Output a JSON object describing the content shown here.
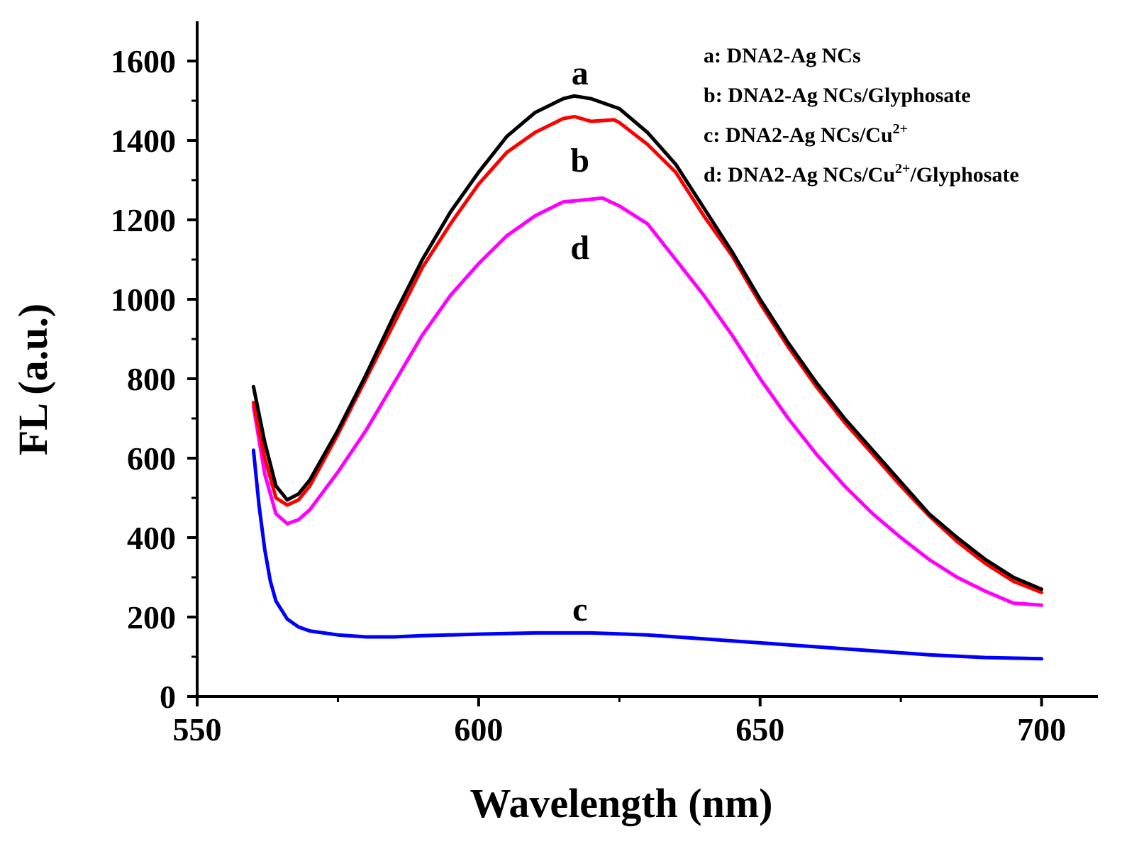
{
  "chart_data": {
    "type": "line",
    "title": "",
    "xlabel": "Wavelength (nm)",
    "ylabel": "FL (a.u.)",
    "xlim": [
      550,
      710
    ],
    "ylim": [
      0,
      1700
    ],
    "x_ticks": [
      550,
      600,
      650,
      700
    ],
    "y_ticks": [
      0,
      200,
      400,
      600,
      800,
      1000,
      1200,
      1400,
      1600
    ],
    "grid": false,
    "legend_position": "top-right",
    "legend": [
      {
        "letter": "a",
        "text": ": DNA2-Ag NCs",
        "sup": "",
        "after": ""
      },
      {
        "letter": "b",
        "text": ": DNA2-Ag NCs/Glyphosate",
        "sup": "",
        "after": ""
      },
      {
        "letter": "c",
        "text": ": DNA2-Ag NCs/Cu",
        "sup": "2+",
        "after": ""
      },
      {
        "letter": "d",
        "text": ": DNA2-Ag NCs/Cu",
        "sup": "2+",
        "after": "/Glyphosate"
      }
    ],
    "series": [
      {
        "label": "a",
        "color": "#000000",
        "label_at": [
          618,
          1570
        ],
        "x": [
          560,
          562,
          564,
          566,
          568,
          570,
          575,
          580,
          585,
          590,
          595,
          600,
          605,
          610,
          615,
          617,
          620,
          625,
          630,
          635,
          640,
          645,
          650,
          655,
          660,
          665,
          670,
          675,
          680,
          685,
          690,
          695,
          700
        ],
        "y": [
          780,
          640,
          530,
          495,
          510,
          545,
          670,
          810,
          960,
          1100,
          1220,
          1320,
          1410,
          1470,
          1505,
          1512,
          1505,
          1480,
          1420,
          1340,
          1230,
          1120,
          1000,
          890,
          790,
          700,
          620,
          540,
          460,
          400,
          345,
          300,
          270
        ]
      },
      {
        "label": "b",
        "color": "#ff0000",
        "label_at": [
          618,
          1350
        ],
        "x": [
          560,
          562,
          564,
          566,
          568,
          570,
          575,
          580,
          585,
          590,
          595,
          600,
          605,
          610,
          615,
          617,
          620,
          624,
          625,
          630,
          635,
          640,
          645,
          650,
          655,
          660,
          665,
          670,
          675,
          680,
          685,
          690,
          695,
          700
        ],
        "y": [
          740,
          600,
          500,
          482,
          495,
          530,
          660,
          800,
          940,
          1080,
          1190,
          1290,
          1370,
          1420,
          1455,
          1460,
          1448,
          1452,
          1445,
          1390,
          1320,
          1210,
          1110,
          990,
          880,
          780,
          690,
          610,
          530,
          455,
          390,
          335,
          290,
          262
        ]
      },
      {
        "label": "c",
        "color": "#0000ff",
        "label_at": [
          618,
          220
        ],
        "x": [
          560,
          561,
          562,
          563,
          564,
          566,
          568,
          570,
          575,
          580,
          585,
          590,
          600,
          610,
          620,
          630,
          640,
          650,
          660,
          670,
          680,
          690,
          700
        ],
        "y": [
          620,
          480,
          370,
          290,
          240,
          195,
          175,
          165,
          155,
          150,
          150,
          153,
          157,
          160,
          160,
          155,
          145,
          135,
          125,
          115,
          105,
          98,
          95
        ]
      },
      {
        "label": "d",
        "color": "#ff00ff",
        "label_at": [
          618,
          1130
        ],
        "x": [
          560,
          562,
          564,
          566,
          568,
          570,
          575,
          580,
          585,
          590,
          595,
          600,
          605,
          610,
          615,
          620,
          622,
          625,
          630,
          635,
          640,
          645,
          650,
          655,
          660,
          665,
          670,
          675,
          680,
          685,
          690,
          695,
          700
        ],
        "y": [
          730,
          560,
          460,
          435,
          445,
          470,
          565,
          670,
          790,
          910,
          1010,
          1090,
          1160,
          1210,
          1245,
          1252,
          1255,
          1235,
          1190,
          1100,
          1010,
          910,
          800,
          700,
          610,
          530,
          460,
          400,
          345,
          300,
          265,
          235,
          230
        ]
      }
    ]
  }
}
